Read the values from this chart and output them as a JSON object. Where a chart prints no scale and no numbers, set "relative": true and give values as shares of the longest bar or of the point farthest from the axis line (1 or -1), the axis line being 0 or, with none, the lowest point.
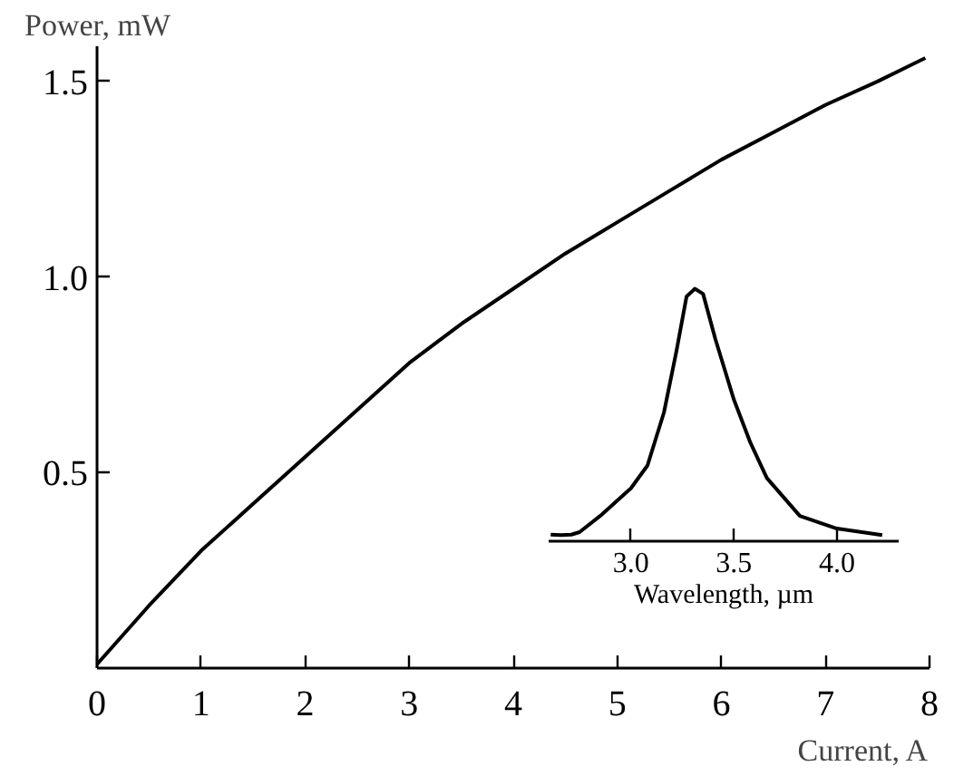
{
  "chart_data": [
    {
      "type": "line",
      "xlabel": "Current, A",
      "ylabel": "Power, mW",
      "x": [
        0,
        0.5,
        1,
        1.5,
        2,
        2.5,
        3,
        3.5,
        4,
        4.5,
        5,
        5.5,
        6,
        6.5,
        7,
        7.5,
        7.96
      ],
      "series": [
        {
          "color": "#000000",
          "values": [
            0.01,
            0.16,
            0.3,
            0.42,
            0.54,
            0.66,
            0.78,
            0.88,
            0.97,
            1.06,
            1.14,
            1.22,
            1.3,
            1.37,
            1.44,
            1.5,
            1.56
          ]
        }
      ],
      "xlim": [
        0,
        8
      ],
      "ylim": [
        0,
        1.59
      ],
      "xticks": [
        0,
        1,
        2,
        3,
        4,
        5,
        6,
        7,
        8
      ],
      "yticks": [
        {
          "value": 0.5,
          "label": "0.5"
        },
        {
          "value": 1.0,
          "label": "1.0"
        },
        {
          "value": 1.5,
          "label": "1.5"
        }
      ],
      "grid": false,
      "marker": "none",
      "line_style": "solid"
    },
    {
      "type": "line",
      "relative": true,
      "xlabel": "Wavelength, µm",
      "x": [
        2.61,
        2.66,
        2.71,
        2.75,
        2.85,
        3.0,
        3.08,
        3.16,
        3.22,
        3.27,
        3.31,
        3.35,
        3.41,
        3.5,
        3.58,
        3.66,
        3.82,
        4.0,
        4.22
      ],
      "series": [
        {
          "color": "#000000",
          "values": [
            0.026,
            0.024,
            0.026,
            0.036,
            0.1,
            0.21,
            0.3,
            0.51,
            0.75,
            0.97,
            1,
            0.98,
            0.8,
            0.56,
            0.39,
            0.25,
            0.1,
            0.05,
            0.024
          ]
        }
      ],
      "xlim": [
        2.6,
        4.3
      ],
      "xticks": [
        {
          "value": 3.0,
          "label": "3.0"
        },
        {
          "value": 3.5,
          "label": "3.5"
        },
        {
          "value": 4.0,
          "label": "4.0"
        }
      ],
      "grid": false,
      "marker": "none",
      "line_style": "solid"
    }
  ]
}
